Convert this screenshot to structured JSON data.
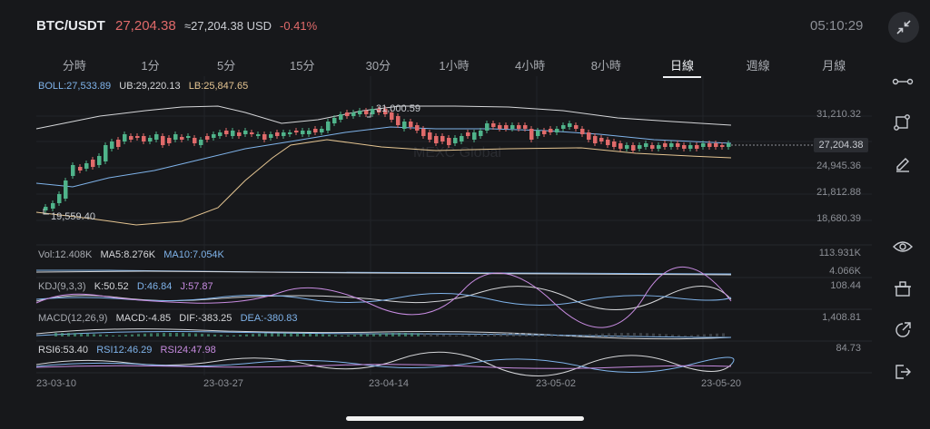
{
  "header": {
    "pair": "BTC/USDT",
    "last_price": "27,204.38",
    "approx_usd": "≈27,204.38 USD",
    "change_pct": "-0.41%",
    "clock": "05:10:29",
    "fullscreen_icon": "collapse-arrows-icon"
  },
  "tabs": [
    {
      "label": "分時"
    },
    {
      "label": "1分"
    },
    {
      "label": "5分"
    },
    {
      "label": "15分"
    },
    {
      "label": "30分"
    },
    {
      "label": "1小時"
    },
    {
      "label": "4小時"
    },
    {
      "label": "8小時"
    },
    {
      "label": "日線",
      "active": true
    },
    {
      "label": "週線"
    },
    {
      "label": "月線"
    }
  ],
  "indicators": {
    "boll": {
      "mid": "BOLL:27,533.89",
      "ub": "UB:29,220.13",
      "lb": "LB:25,847.65"
    },
    "vol": {
      "vol": "Vol:12.408K",
      "ma5": "MA5:8.276K",
      "ma10": "MA10:7.054K"
    },
    "kdj": {
      "title": "KDJ(9,3,3)",
      "k": "K:50.52",
      "d": "D:46.84",
      "j": "J:57.87"
    },
    "macd": {
      "title": "MACD(12,26,9)",
      "macd": "MACD:-4.85",
      "dif": "DIF:-383.25",
      "dea": "DEA:-380.83"
    },
    "rsi": {
      "rsi6": "RSI6:53.40",
      "rsi12": "RSI12:46.29",
      "rsi24": "RSI24:47.98"
    }
  },
  "price_axis": [
    "31,210.32",
    "24,945.36",
    "21,812.88",
    "18,680.39"
  ],
  "current_price_tag": "27,204.38",
  "high_marker": "31,000.59",
  "low_marker": "19,559.40",
  "watermark": "MEXC Global",
  "volume_axis": [
    "113.931K",
    "4.066K"
  ],
  "kdj_axis": "108.44",
  "macd_axis": "1,408.81",
  "rsi_axis": "84.73",
  "dates": [
    "23-03-10",
    "23-03-27",
    "23-04-14",
    "23-05-02",
    "23-05-20"
  ],
  "colors": {
    "up": "#4fb38a",
    "down": "#e06a6a",
    "background": "#17181b",
    "boll_mid": "#7fb3ea",
    "boll_ub": "#d5d6d9",
    "boll_lb": "#e5c592"
  },
  "toolbar": [
    {
      "name": "line-tool-icon"
    },
    {
      "name": "shape-tool-icon"
    },
    {
      "name": "draw-pen-icon"
    },
    {
      "name": "eye-icon"
    },
    {
      "name": "template-icon"
    },
    {
      "name": "share-icon"
    },
    {
      "name": "exit-icon"
    }
  ]
}
